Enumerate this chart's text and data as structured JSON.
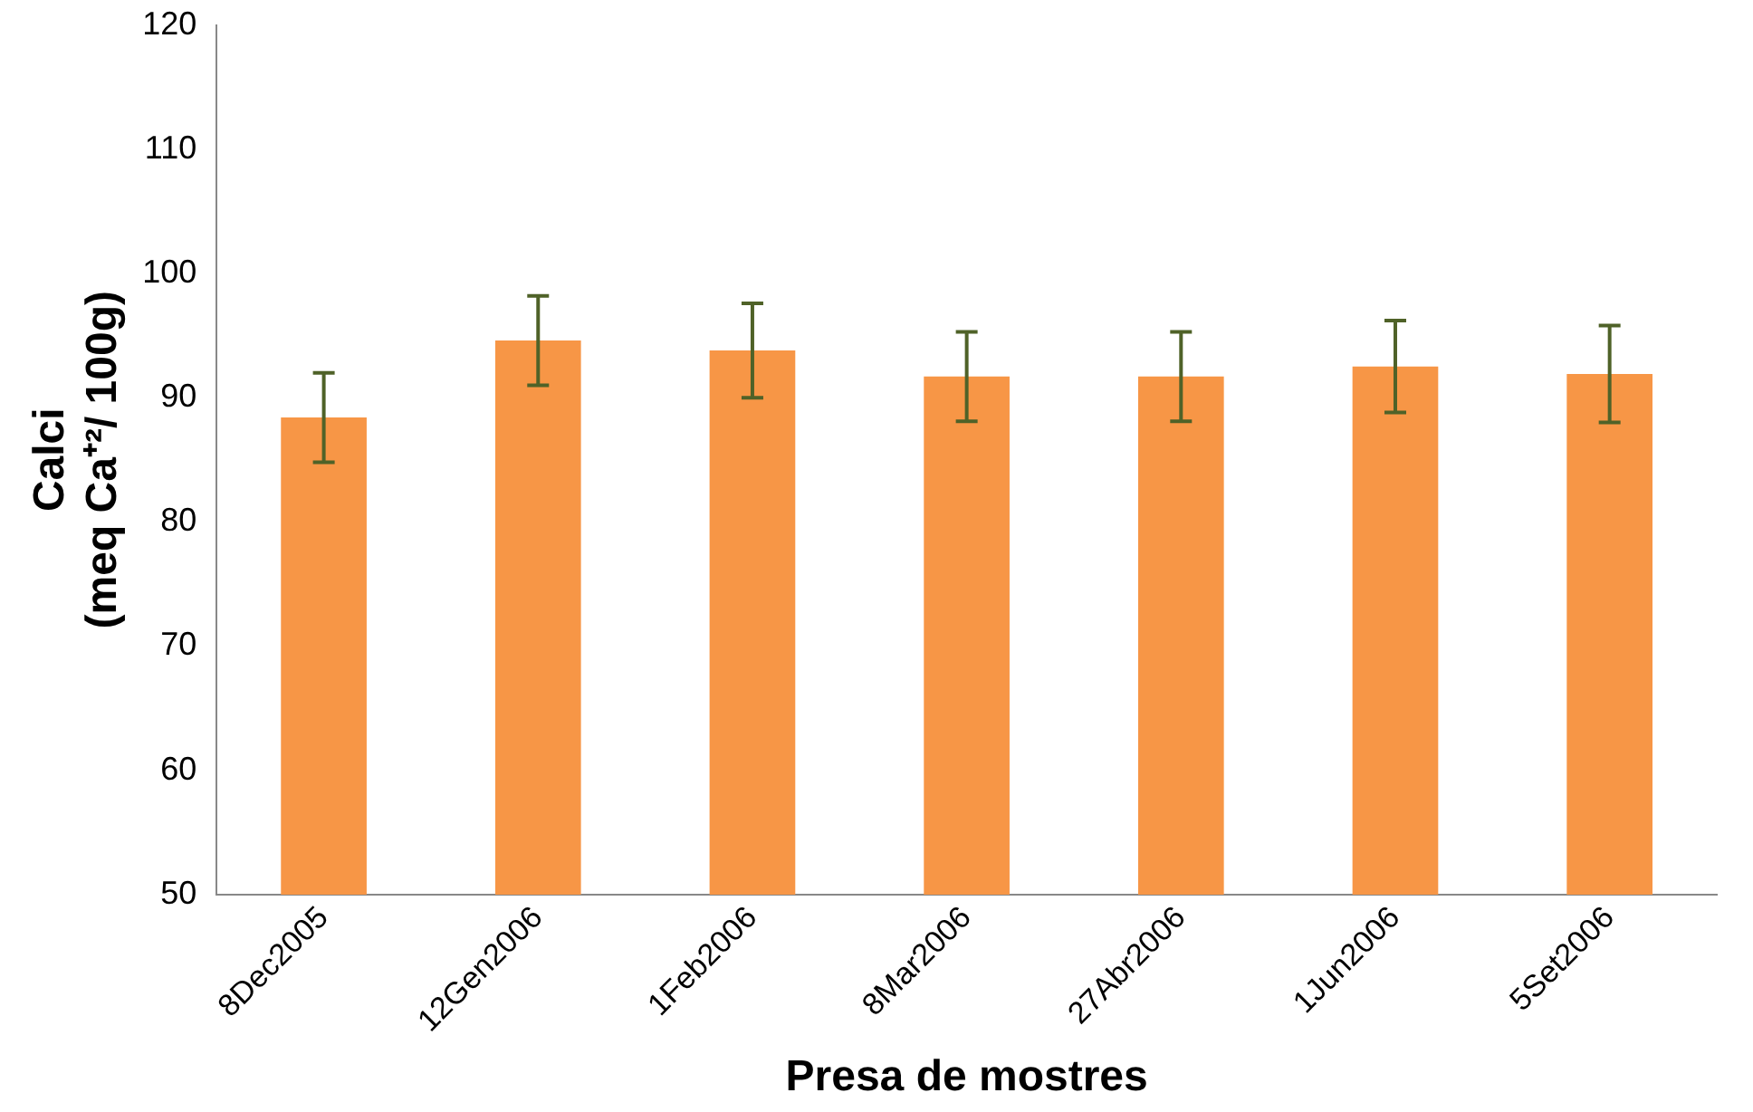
{
  "chart_data": {
    "type": "bar",
    "xlabel": "Presa de mostres",
    "ylabel": "Calci\n(meq Ca⁺²/ 100g)",
    "categories": [
      "8Dec2005",
      "12Gen2006",
      "1Feb2006",
      "8Mar2006",
      "27Abr2006",
      "1Jun2006",
      "5Set2006"
    ],
    "values": [
      88.4,
      94.6,
      93.8,
      91.7,
      91.7,
      92.5,
      91.9
    ],
    "errors": [
      3.6,
      3.6,
      3.8,
      3.6,
      3.6,
      3.7,
      3.9
    ],
    "color": "#f79646",
    "ylim": [
      50,
      120
    ],
    "yticks": [
      50,
      60,
      70,
      80,
      90,
      100,
      110,
      120
    ],
    "grid": false,
    "legend": false
  }
}
